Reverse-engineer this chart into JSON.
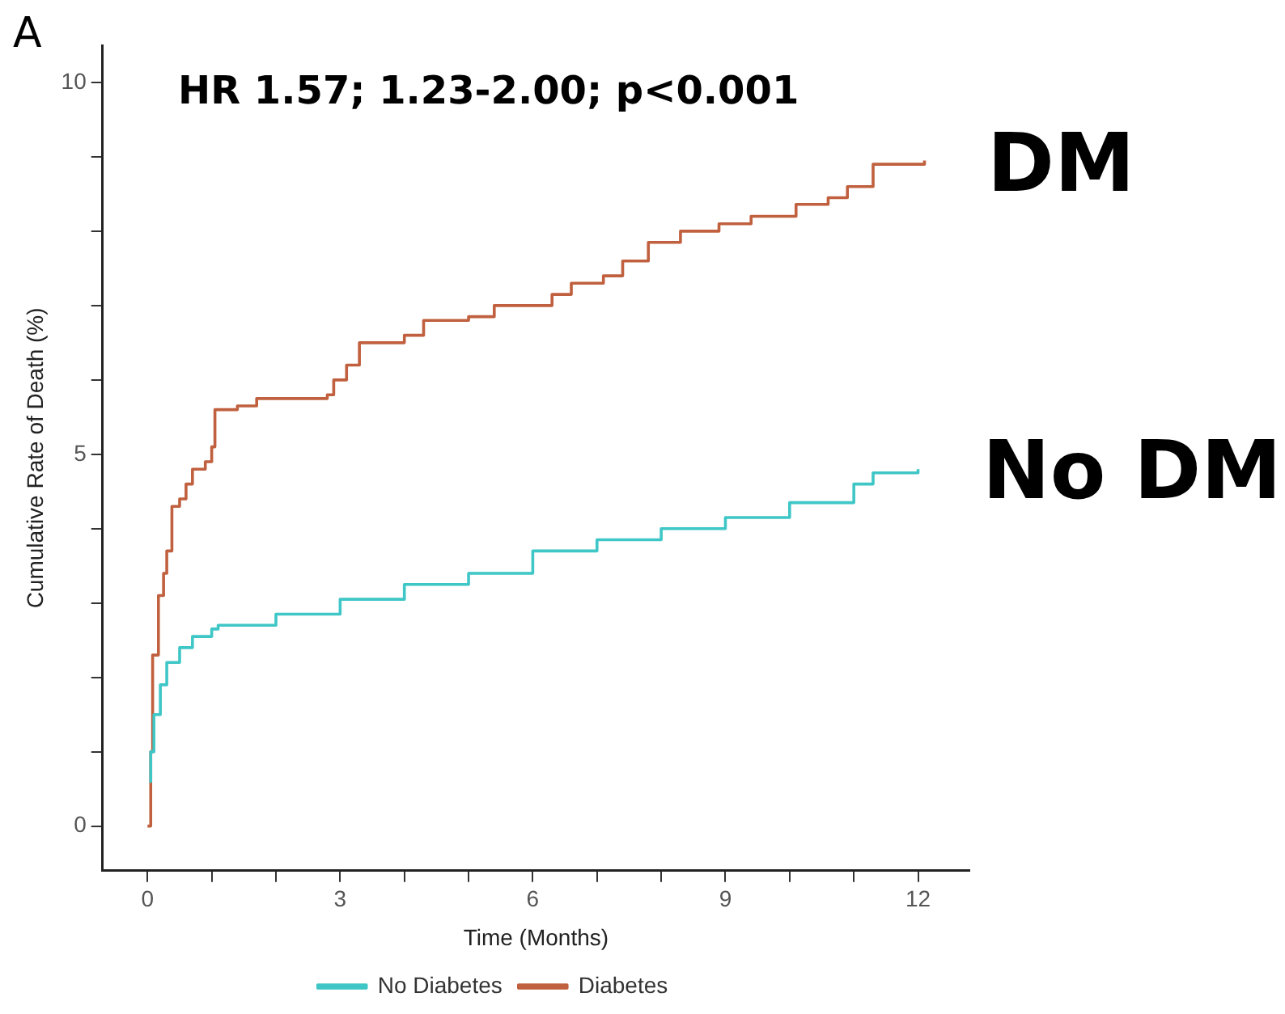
{
  "chart_data": {
    "type": "step",
    "xlabel": "Time (Months)",
    "ylabel": "Cumulative Rate of Death (%)",
    "annotations": [
      "A",
      "HR 1.57; 1.23-2.00; p<0.001",
      "DM",
      "No DM"
    ],
    "xlim": [
      -0.7,
      12.8
    ],
    "ylim": [
      -0.6,
      10.5
    ],
    "xticks": [
      0,
      {
        "value": 1,
        "label": null
      },
      {
        "value": 2,
        "label": null
      },
      3,
      {
        "value": 4,
        "label": null
      },
      {
        "value": 5,
        "label": null
      },
      6,
      {
        "value": 7,
        "label": null
      },
      {
        "value": 8,
        "label": null
      },
      9,
      {
        "value": 10,
        "label": null
      },
      {
        "value": 11,
        "label": null
      },
      12
    ],
    "yticks": [
      0,
      {
        "value": 1,
        "label": null
      },
      {
        "value": 2,
        "label": null
      },
      {
        "value": 3,
        "label": null
      },
      {
        "value": 4,
        "label": null
      },
      5,
      {
        "value": 6,
        "label": null
      },
      {
        "value": 7,
        "label": null
      },
      {
        "value": 8,
        "label": null
      },
      {
        "value": 9,
        "label": null
      },
      10
    ],
    "grid": false,
    "legend": "bottom",
    "marker": "none",
    "line_style": "solid",
    "series": [
      {
        "name": "No Diabetes",
        "color": "#3fc6c6",
        "x": [
          0.03,
          0.05,
          0.1,
          0.2,
          0.3,
          0.5,
          0.7,
          1.0,
          1.1,
          2,
          3,
          4,
          5,
          6,
          7,
          8,
          9,
          10,
          11,
          11.3,
          12
        ],
        "values": [
          0.6,
          1.0,
          1.5,
          1.9,
          2.2,
          2.4,
          2.55,
          2.65,
          2.7,
          2.85,
          3.05,
          3.25,
          3.4,
          3.7,
          3.85,
          4.0,
          4.15,
          4.35,
          4.6,
          4.75,
          4.8
        ]
      },
      {
        "name": "Diabetes",
        "color": "#c0603e",
        "x": [
          0,
          0.05,
          0.08,
          0.17,
          0.25,
          0.3,
          0.38,
          0.5,
          0.6,
          0.7,
          0.9,
          1.0,
          1.05,
          1.4,
          1.7,
          2.8,
          2.9,
          3.1,
          3.3,
          4.0,
          4.3,
          5.0,
          5.4,
          6.3,
          6.6,
          7.1,
          7.4,
          7.8,
          8.3,
          8.9,
          9.4,
          10.1,
          10.6,
          10.9,
          11.3,
          12.1
        ],
        "values": [
          0,
          1.0,
          2.3,
          3.1,
          3.4,
          3.7,
          4.3,
          4.4,
          4.6,
          4.8,
          4.9,
          5.1,
          5.6,
          5.65,
          5.75,
          5.8,
          6.0,
          6.2,
          6.5,
          6.6,
          6.8,
          6.85,
          7.0,
          7.15,
          7.3,
          7.4,
          7.6,
          7.85,
          8.0,
          8.1,
          8.2,
          8.36,
          8.45,
          8.6,
          8.9,
          8.95
        ]
      }
    ]
  }
}
